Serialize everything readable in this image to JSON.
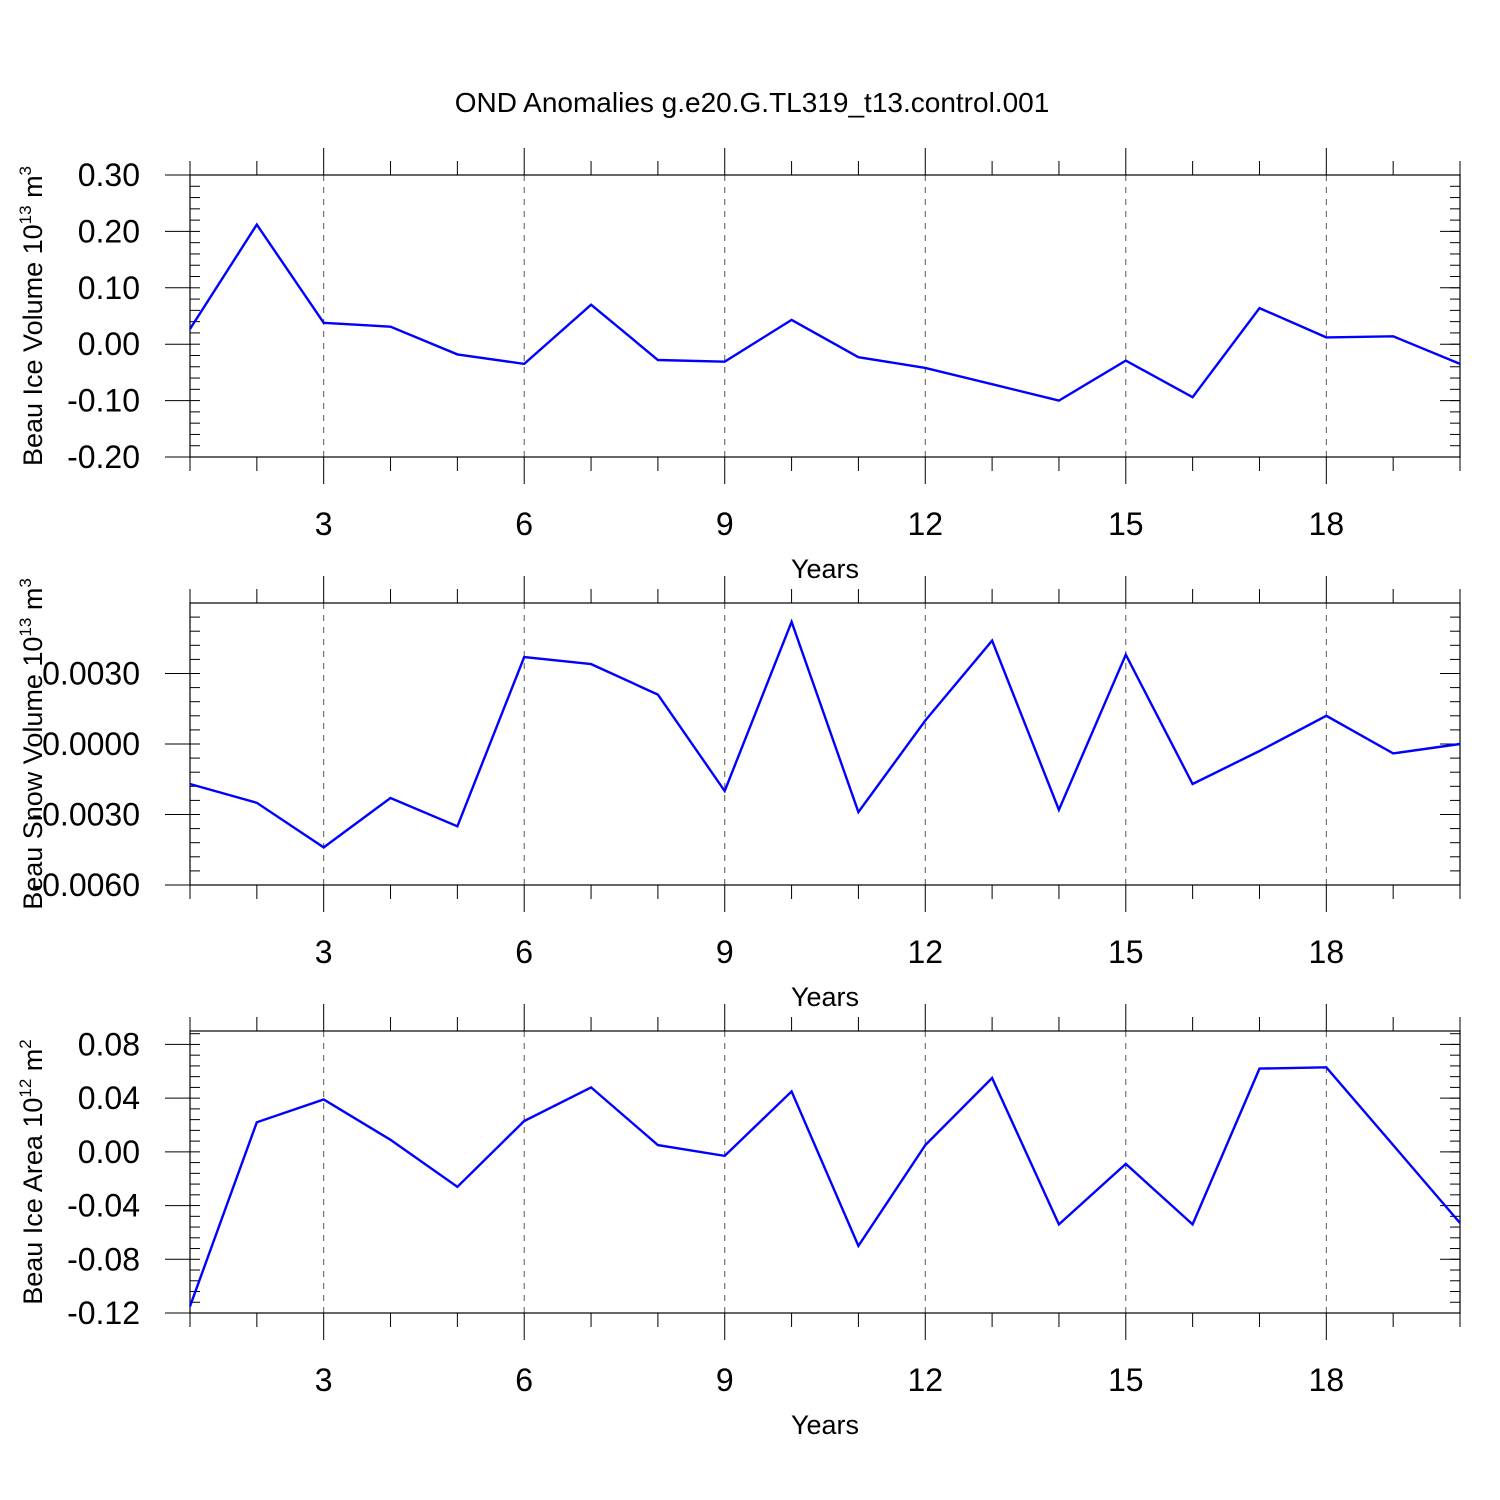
{
  "title": "OND Anomalies g.e20.G.TL319_t13.control.001",
  "colors": {
    "line": "#0000ff",
    "axis": "#000000",
    "grid": "#555555"
  },
  "chart_data": [
    {
      "type": "line",
      "xlabel": "Years",
      "ylabel": {
        "text": "Beau Ice Volume 10",
        "exp": "13",
        "unit": " m",
        "unit_exp": "3"
      },
      "xlim": [
        1,
        20
      ],
      "ylim": [
        -0.2,
        0.3
      ],
      "xticks": [
        3,
        6,
        9,
        12,
        15,
        18
      ],
      "xtick_labels": [
        "3",
        "6",
        "9",
        "12",
        "15",
        "18"
      ],
      "yticks": [
        -0.2,
        -0.1,
        0.0,
        0.1,
        0.2,
        0.3
      ],
      "ytick_labels": [
        "-0.20",
        "-0.10",
        "0.00",
        "0.10",
        "0.20",
        "0.30"
      ],
      "grid": "vertical dashed at major x ticks",
      "x": [
        1,
        2,
        3,
        4,
        5,
        6,
        7,
        8,
        9,
        10,
        11,
        12,
        13,
        14,
        15,
        16,
        17,
        18,
        19,
        20
      ],
      "series": [
        {
          "values": [
            0.027,
            0.212,
            0.038,
            0.031,
            -0.018,
            -0.035,
            0.07,
            -0.028,
            -0.031,
            0.043,
            -0.023,
            -0.042,
            -0.071,
            -0.1,
            -0.029,
            -0.094,
            0.064,
            0.012,
            0.014,
            -0.035
          ]
        }
      ]
    },
    {
      "type": "line",
      "xlabel": "Years",
      "ylabel": {
        "text": "Beau Snow Volume 10",
        "exp": "13",
        "unit": " m",
        "unit_exp": "3"
      },
      "xlim": [
        1,
        20
      ],
      "ylim": [
        -0.006,
        0.006
      ],
      "xticks": [
        3,
        6,
        9,
        12,
        15,
        18
      ],
      "xtick_labels": [
        "3",
        "6",
        "9",
        "12",
        "15",
        "18"
      ],
      "yticks": [
        -0.006,
        -0.003,
        0.0,
        0.003
      ],
      "ytick_labels": [
        "-0.0060",
        "-0.0030",
        "0.0000",
        "0.0030"
      ],
      "grid": "vertical dashed at major x ticks",
      "x": [
        1,
        2,
        3,
        4,
        5,
        6,
        7,
        8,
        9,
        10,
        11,
        12,
        13,
        14,
        15,
        16,
        17,
        18,
        19,
        20
      ],
      "series": [
        {
          "values": [
            -0.0017,
            -0.0025,
            -0.0044,
            -0.0023,
            -0.0035,
            0.0037,
            0.0034,
            0.0021,
            -0.002,
            0.0052,
            -0.0029,
            0.001,
            0.0044,
            -0.0028,
            0.0038,
            -0.0017,
            -0.0003,
            0.0012,
            -0.0004,
            0.0
          ]
        }
      ]
    },
    {
      "type": "line",
      "xlabel": "Years",
      "ylabel": {
        "text": "Beau Ice Area 10",
        "exp": "12",
        "unit": " m",
        "unit_exp": "2"
      },
      "xlim": [
        1,
        20
      ],
      "ylim": [
        -0.12,
        0.09
      ],
      "xticks": [
        3,
        6,
        9,
        12,
        15,
        18
      ],
      "xtick_labels": [
        "3",
        "6",
        "9",
        "12",
        "15",
        "18"
      ],
      "yticks": [
        -0.12,
        -0.08,
        -0.04,
        0.0,
        0.04,
        0.08
      ],
      "ytick_labels": [
        "-0.12",
        "-0.08",
        "-0.04",
        "0.00",
        "0.04",
        "0.08"
      ],
      "grid": "vertical dashed at major x ticks",
      "x": [
        1,
        2,
        3,
        4,
        5,
        6,
        7,
        8,
        9,
        10,
        11,
        12,
        13,
        14,
        15,
        16,
        17,
        18,
        19,
        20
      ],
      "series": [
        {
          "values": [
            -0.115,
            0.022,
            0.039,
            0.009,
            -0.026,
            0.023,
            0.048,
            0.005,
            -0.003,
            0.045,
            -0.07,
            0.005,
            0.055,
            -0.054,
            -0.009,
            -0.054,
            0.062,
            0.063,
            0.005,
            -0.053
          ]
        }
      ]
    }
  ]
}
